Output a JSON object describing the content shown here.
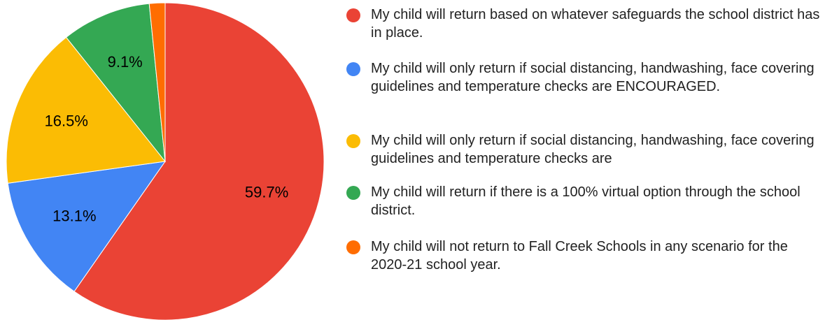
{
  "chart_data": {
    "type": "pie",
    "categories": [
      "My child will return based on whatever safeguards the school district has in place.",
      "My child will only return if social distancing, handwashing, face covering guidelines and temperature checks are ENCOURAGED.",
      "My child will only return if social distancing, handwashing, face covering guidelines and temperature checks are",
      "My child will return if there is a 100% virtual option through the school district.",
      "My child will not return to Fall Creek Schools in any scenario for the 2020-21 school year."
    ],
    "values": [
      59.7,
      13.1,
      16.5,
      9.1,
      1.6
    ],
    "value_labels": [
      "59.7%",
      "13.1%",
      "16.5%",
      "9.1%",
      null
    ],
    "colors": [
      "#ea4335",
      "#4285f4",
      "#fbbc04",
      "#34a853",
      "#ff6d01"
    ]
  }
}
